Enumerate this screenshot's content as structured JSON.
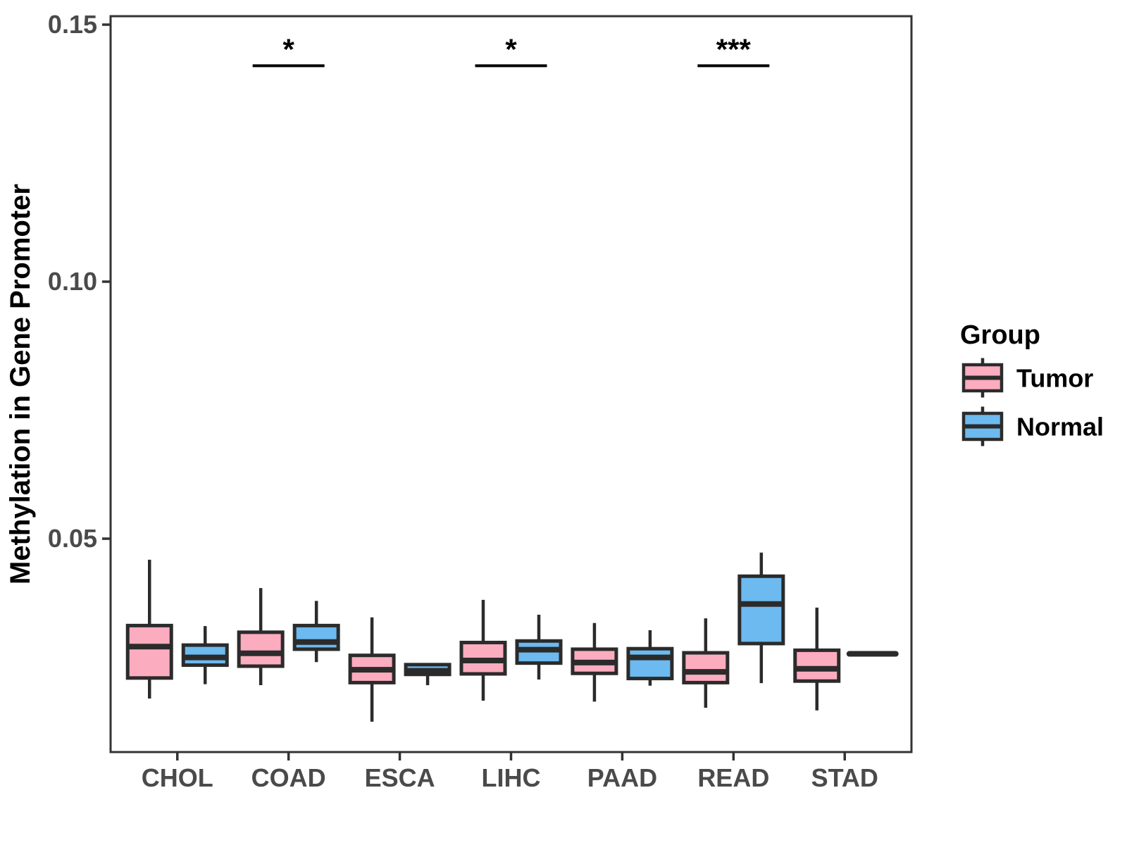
{
  "chart_data": {
    "type": "boxplot",
    "title": "",
    "xlabel": "",
    "ylabel": "Methylation in Gene Promoter",
    "categories": [
      "CHOL",
      "COAD",
      "ESCA",
      "LIHC",
      "PAAD",
      "READ",
      "STAD"
    ],
    "y_ticks": [
      0.05,
      0.1,
      0.15
    ],
    "y_tick_labels": [
      "0.05",
      "0.10",
      "0.15"
    ],
    "ylim": [
      0.0085,
      0.1516
    ],
    "grid": "off",
    "legend": {
      "title": "Group",
      "position": "right",
      "entries": [
        {
          "label": "Tumor",
          "color": "#FCACBF"
        },
        {
          "label": "Normal",
          "color": "#6CBAEF"
        }
      ]
    },
    "series": [
      {
        "name": "Tumor",
        "color": "#FCACBF",
        "boxes": [
          {
            "category": "CHOL",
            "whisker_low": 0.0189,
            "q1": 0.0229,
            "median": 0.029,
            "q3": 0.0331,
            "whisker_high": 0.0459
          },
          {
            "category": "COAD",
            "whisker_low": 0.0215,
            "q1": 0.0252,
            "median": 0.0277,
            "q3": 0.0318,
            "whisker_high": 0.0404
          },
          {
            "category": "ESCA",
            "whisker_low": 0.0144,
            "q1": 0.022,
            "median": 0.0245,
            "q3": 0.0273,
            "whisker_high": 0.0347
          },
          {
            "category": "LIHC",
            "whisker_low": 0.0185,
            "q1": 0.0237,
            "median": 0.0263,
            "q3": 0.0298,
            "whisker_high": 0.0381
          },
          {
            "category": "PAAD",
            "whisker_low": 0.0183,
            "q1": 0.0238,
            "median": 0.0259,
            "q3": 0.0285,
            "whisker_high": 0.0336
          },
          {
            "category": "READ",
            "whisker_low": 0.0171,
            "q1": 0.022,
            "median": 0.0241,
            "q3": 0.0278,
            "whisker_high": 0.0345
          },
          {
            "category": "STAD",
            "whisker_low": 0.0166,
            "q1": 0.0223,
            "median": 0.0247,
            "q3": 0.0283,
            "whisker_high": 0.0366
          }
        ]
      },
      {
        "name": "Normal",
        "color": "#6CBAEF",
        "boxes": [
          {
            "category": "CHOL",
            "whisker_low": 0.0217,
            "q1": 0.0254,
            "median": 0.0269,
            "q3": 0.0293,
            "whisker_high": 0.033
          },
          {
            "category": "COAD",
            "whisker_low": 0.026,
            "q1": 0.0285,
            "median": 0.0299,
            "q3": 0.0331,
            "whisker_high": 0.0379
          },
          {
            "category": "ESCA",
            "whisker_low": 0.0215,
            "q1": 0.0236,
            "median": 0.0243,
            "q3": 0.0255,
            "whisker_high": 0.0257
          },
          {
            "category": "LIHC",
            "whisker_low": 0.0226,
            "q1": 0.0258,
            "median": 0.0284,
            "q3": 0.0301,
            "whisker_high": 0.0352
          },
          {
            "category": "PAAD",
            "whisker_low": 0.0214,
            "q1": 0.0228,
            "median": 0.0269,
            "q3": 0.0286,
            "whisker_high": 0.0322
          },
          {
            "category": "READ",
            "whisker_low": 0.0219,
            "q1": 0.0296,
            "median": 0.0373,
            "q3": 0.0427,
            "whisker_high": 0.0473
          },
          {
            "category": "STAD",
            "whisker_low": 0.0276,
            "q1": 0.0276,
            "median": 0.0276,
            "q3": 0.0276,
            "whisker_high": 0.0276
          }
        ]
      }
    ],
    "significance": [
      {
        "category": "COAD",
        "label": "*"
      },
      {
        "category": "LIHC",
        "label": "*"
      },
      {
        "category": "READ",
        "label": "***"
      }
    ],
    "bracket_y": 0.142,
    "colors": {
      "tumor_fill": "#FCACBF",
      "normal_fill": "#6CBAEF",
      "box_stroke": "#2B2B2B",
      "panel_border": "#333333",
      "tick_label": "#4A4A4A",
      "axis_title": "#000000",
      "significance": "#000000",
      "background": "#FFFFFF"
    }
  }
}
